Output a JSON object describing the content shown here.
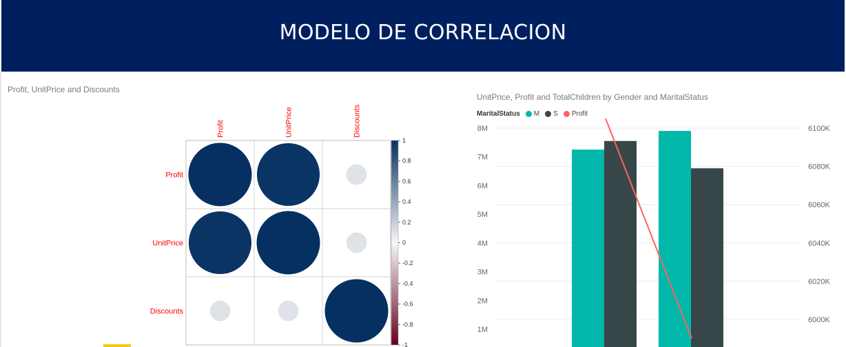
{
  "header": {
    "title": "MODELO DE CORRELACION"
  },
  "corr_chart": {
    "title": "Profit, UnitPrice and Discounts"
  },
  "bar_chart": {
    "title": "UnitPrice, Profit and TotalChildren by Gender and MaritalStatus"
  },
  "legend": {
    "label": "MaritalStatus",
    "items": [
      {
        "name": "M",
        "color": "#01b8aa"
      },
      {
        "name": "S",
        "color": "#374649"
      },
      {
        "name": "Profit",
        "color": "#fd625e"
      }
    ]
  },
  "chart_data": [
    {
      "type": "heatmap",
      "title": "Profit, UnitPrice and Discounts",
      "variables": [
        "Profit",
        "UnitPrice",
        "Discounts"
      ],
      "matrix": [
        [
          1.0,
          0.98,
          0.1
        ],
        [
          0.98,
          1.0,
          0.1
        ],
        [
          0.1,
          0.1,
          1.0
        ]
      ],
      "colorbar": {
        "range": [
          -1,
          1
        ],
        "ticks": [
          "1",
          "0.8",
          "0.6",
          "0.4",
          "0.2",
          "0",
          "-0.2",
          "-0.4",
          "-0.6",
          "-0.8",
          "-1"
        ],
        "colors": {
          "low": "#67001f",
          "mid": "#f7f7f7",
          "high": "#053061"
        }
      },
      "label_color": "#ff0000"
    },
    {
      "type": "bar",
      "title": "UnitPrice, Profit and TotalChildren by Gender and MaritalStatus",
      "legend_title": "MaritalStatus",
      "series": [
        {
          "name": "M",
          "color": "#01b8aa",
          "values": [
            7.25,
            7.9
          ]
        },
        {
          "name": "S",
          "color": "#374649",
          "values": [
            7.55,
            6.6
          ]
        }
      ],
      "line": {
        "name": "Profit",
        "color": "#fd625e",
        "points": [
          [
            0.0,
            6105
          ],
          [
            1.0,
            5990
          ]
        ]
      },
      "ylim_left": [
        0.8,
        8
      ],
      "ylim_right": [
        5989,
        6108
      ],
      "y_ticks_left": [
        {
          "value": 1,
          "label": "1M"
        },
        {
          "value": 2,
          "label": "2M"
        },
        {
          "value": 3,
          "label": "3M"
        },
        {
          "value": 4,
          "label": "4M"
        },
        {
          "value": 5,
          "label": "5M"
        },
        {
          "value": 6,
          "label": "6M"
        },
        {
          "value": 7,
          "label": "7M"
        },
        {
          "value": 8,
          "label": "8M"
        }
      ],
      "y_ticks_right": [
        {
          "value": 6000,
          "label": "6000K"
        },
        {
          "value": 6020,
          "label": "6020K"
        },
        {
          "value": 6040,
          "label": "6040K"
        },
        {
          "value": 6060,
          "label": "6060K"
        },
        {
          "value": 6080,
          "label": "6080K"
        },
        {
          "value": 6100,
          "label": "6100K"
        }
      ],
      "grid": true,
      "legend_position": "top-left"
    }
  ]
}
